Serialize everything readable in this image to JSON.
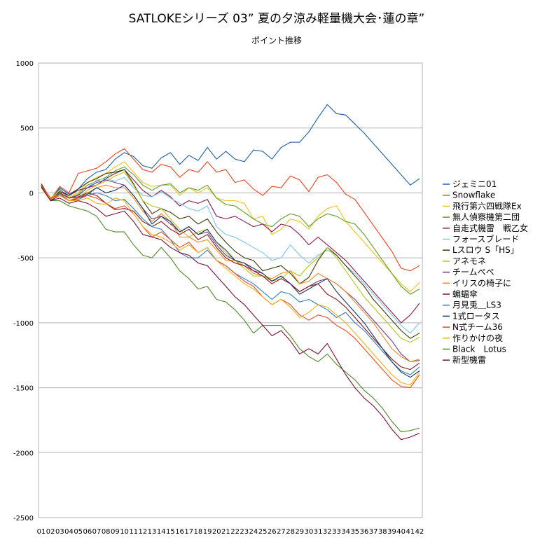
{
  "chart_data": {
    "type": "line",
    "title": "SATLOKEシリーズ 03” 夏の夕涼み軽量機大会･蓮の章”",
    "subtitle": "ポイント推移",
    "ylim": [
      -2500,
      1000
    ],
    "yticks": [
      1000,
      500,
      0,
      -500,
      -1000,
      -1500,
      -2000,
      -2500
    ],
    "xticks": [
      "01",
      "02",
      "03",
      "04",
      "05",
      "06",
      "07",
      "08",
      "09",
      "10",
      "11",
      "12",
      "13",
      "14",
      "15",
      "16",
      "17",
      "18",
      "19",
      "20",
      "21",
      "22",
      "23",
      "24",
      "25",
      "26",
      "27",
      "28",
      "29",
      "30",
      "31",
      "32",
      "33",
      "34",
      "35",
      "36",
      "37",
      "38",
      "39",
      "40",
      "41",
      "42"
    ],
    "grid": true,
    "legend": "right",
    "series": [
      {
        "name": "ジェミニ01",
        "color": "#1f5fa8",
        "values": [
          60,
          -60,
          40,
          -10,
          30,
          110,
          160,
          180,
          260,
          310,
          280,
          210,
          190,
          270,
          310,
          220,
          290,
          250,
          350,
          260,
          320,
          260,
          240,
          330,
          320,
          260,
          350,
          390,
          390,
          470,
          580,
          680,
          610,
          600,
          530,
          460,
          380,
          300,
          220,
          140,
          60,
          110
        ]
      },
      {
        "name": "Snowflake",
        "color": "#e8441f",
        "values": [
          70,
          -50,
          50,
          0,
          150,
          170,
          190,
          240,
          300,
          340,
          260,
          180,
          160,
          220,
          200,
          120,
          180,
          160,
          240,
          160,
          180,
          80,
          100,
          30,
          -20,
          50,
          40,
          130,
          100,
          10,
          120,
          140,
          80,
          -10,
          -50,
          -150,
          -250,
          -350,
          -450,
          -580,
          -600,
          -560
        ]
      },
      {
        "name": "飛行第六四戦隊Ex",
        "color": "#f5c11a",
        "values": [
          60,
          -40,
          20,
          -30,
          0,
          80,
          120,
          150,
          200,
          240,
          160,
          80,
          50,
          60,
          60,
          -20,
          40,
          0,
          40,
          -40,
          -60,
          -60,
          -80,
          -200,
          -180,
          -320,
          -280,
          -200,
          -220,
          -280,
          -180,
          -120,
          -100,
          -220,
          -300,
          -380,
          -460,
          -540,
          -620,
          -700,
          -760,
          -690
        ]
      },
      {
        "name": "無人偵察機第二団",
        "color": "#5a9e2e",
        "values": [
          50,
          -50,
          30,
          -40,
          -10,
          60,
          90,
          120,
          170,
          200,
          140,
          60,
          20,
          60,
          70,
          0,
          40,
          20,
          60,
          -40,
          -90,
          -100,
          -150,
          -200,
          -240,
          -260,
          -200,
          -160,
          -180,
          -260,
          -200,
          -160,
          -180,
          -220,
          -240,
          -320,
          -420,
          -520,
          -620,
          -720,
          -780,
          -740
        ]
      },
      {
        "name": "自走式機雷　戦乙女",
        "color": "#8a1a4a",
        "values": [
          50,
          -60,
          20,
          -20,
          20,
          40,
          60,
          110,
          150,
          180,
          100,
          20,
          -30,
          20,
          -30,
          -100,
          -60,
          -80,
          -50,
          -180,
          -200,
          -180,
          -220,
          -260,
          -240,
          -300,
          -240,
          -260,
          -320,
          -400,
          -340,
          -400,
          -460,
          -520,
          -600,
          -680,
          -760,
          -840,
          -920,
          -1000,
          -940,
          -850
        ]
      },
      {
        "name": "フォースブレード",
        "color": "#7ec5ea",
        "values": [
          60,
          -50,
          20,
          -40,
          -20,
          40,
          100,
          110,
          90,
          120,
          40,
          -20,
          -30,
          10,
          -40,
          -80,
          -120,
          -140,
          -100,
          -260,
          -320,
          -340,
          -380,
          -420,
          -460,
          -520,
          -500,
          -400,
          -480,
          -540,
          -480,
          -440,
          -480,
          -560,
          -620,
          -700,
          -780,
          -860,
          -940,
          -1020,
          -1080,
          -1000
        ]
      },
      {
        "name": "Lスロウ S「HS」",
        "color": "#3b3a0a",
        "values": [
          70,
          -50,
          10,
          -20,
          30,
          80,
          110,
          150,
          160,
          180,
          70,
          -60,
          -160,
          -120,
          -150,
          -200,
          -180,
          -240,
          -200,
          -300,
          -380,
          -450,
          -500,
          -520,
          -600,
          -580,
          -560,
          -620,
          -700,
          -650,
          -520,
          -420,
          -480,
          -560,
          -640,
          -720,
          -820,
          -900,
          -980,
          -1060,
          -1120,
          -1080
        ]
      },
      {
        "name": "アネモネ",
        "color": "#b6c51e",
        "values": [
          50,
          -40,
          0,
          -60,
          -40,
          20,
          60,
          90,
          130,
          160,
          60,
          -60,
          -100,
          -120,
          -200,
          -280,
          -340,
          -300,
          -280,
          -380,
          -460,
          -520,
          -580,
          -640,
          -640,
          -680,
          -660,
          -600,
          -640,
          -560,
          -500,
          -420,
          -500,
          -600,
          -700,
          -800,
          -880,
          -960,
          -1040,
          -1120,
          -1150,
          -1110
        ]
      },
      {
        "name": "チームぺぺ",
        "color": "#6b3b8a",
        "values": [
          60,
          -60,
          0,
          -40,
          -20,
          40,
          80,
          100,
          80,
          60,
          -20,
          -120,
          -200,
          -180,
          -240,
          -300,
          -260,
          -320,
          -300,
          -400,
          -480,
          -520,
          -540,
          -600,
          -620,
          -680,
          -640,
          -700,
          -760,
          -720,
          -680,
          -660,
          -700,
          -760,
          -820,
          -900,
          -980,
          -1060,
          -1140,
          -1240,
          -1300,
          -1290
        ]
      },
      {
        "name": "イリスの椅子に",
        "color": "#f08a24",
        "values": [
          50,
          -40,
          0,
          -60,
          -30,
          0,
          40,
          60,
          40,
          40,
          -40,
          -140,
          -220,
          -160,
          -220,
          -340,
          -340,
          -380,
          -360,
          -440,
          -520,
          -520,
          -560,
          -620,
          -640,
          -660,
          -620,
          -600,
          -700,
          -680,
          -620,
          -660,
          -700,
          -760,
          -840,
          -920,
          -1000,
          -1100,
          -1200,
          -1260,
          -1300,
          -1280
        ]
      },
      {
        "name": "蝙蝠傘",
        "color": "#8b1414",
        "values": [
          60,
          -60,
          0,
          -40,
          -30,
          0,
          -20,
          -80,
          -130,
          -120,
          -140,
          -220,
          -260,
          -220,
          -280,
          -320,
          -280,
          -360,
          -320,
          -420,
          -500,
          -540,
          -560,
          -600,
          -640,
          -700,
          -660,
          -700,
          -760,
          -720,
          -700,
          -780,
          -820,
          -880,
          -960,
          -1040,
          -1120,
          -1200,
          -1280,
          -1340,
          -1360,
          -1310
        ]
      },
      {
        "name": "月見兎＿LS3",
        "color": "#2e7fc2",
        "values": [
          60,
          -50,
          -10,
          -60,
          -50,
          -20,
          0,
          -20,
          -60,
          -50,
          -120,
          -200,
          -260,
          -280,
          -360,
          -460,
          -500,
          -500,
          -440,
          -520,
          -560,
          -620,
          -660,
          -700,
          -760,
          -820,
          -760,
          -780,
          -840,
          -820,
          -860,
          -900,
          -960,
          -920,
          -1000,
          -1060,
          -1140,
          -1220,
          -1300,
          -1370,
          -1400,
          -1340
        ]
      },
      {
        "name": "1式ロータス",
        "color": "#17375e",
        "values": [
          50,
          -60,
          -20,
          -60,
          -40,
          -10,
          40,
          0,
          20,
          60,
          -20,
          -120,
          -240,
          -180,
          -220,
          -300,
          -260,
          -320,
          -280,
          -380,
          -440,
          -520,
          -540,
          -580,
          -620,
          -680,
          -640,
          -700,
          -780,
          -740,
          -700,
          -660,
          -760,
          -840,
          -920,
          -1000,
          -1100,
          -1200,
          -1300,
          -1380,
          -1420,
          -1370
        ]
      },
      {
        "name": "N式チーム36",
        "color": "#e84a2a",
        "values": [
          60,
          -40,
          -20,
          -60,
          -40,
          -20,
          -40,
          -80,
          -120,
          -100,
          -160,
          -260,
          -340,
          -300,
          -360,
          -420,
          -380,
          -460,
          -420,
          -520,
          -560,
          -620,
          -680,
          -720,
          -800,
          -860,
          -820,
          -860,
          -940,
          -980,
          -940,
          -960,
          -1020,
          -1060,
          -1120,
          -1200,
          -1280,
          -1360,
          -1440,
          -1490,
          -1500,
          -1400
        ]
      },
      {
        "name": "作りかけの夜",
        "color": "#f5b01a",
        "values": [
          50,
          -50,
          -20,
          -60,
          -60,
          -40,
          -80,
          -90,
          -40,
          -60,
          -160,
          -260,
          -320,
          -340,
          -380,
          -440,
          -400,
          -460,
          -420,
          -520,
          -580,
          -640,
          -700,
          -740,
          -800,
          -860,
          -820,
          -880,
          -960,
          -920,
          -860,
          -880,
          -940,
          -1000,
          -1080,
          -1160,
          -1240,
          -1320,
          -1400,
          -1460,
          -1480,
          -1380
        ]
      },
      {
        "name": "Black　Lotus",
        "color": "#4f8a2a",
        "values": [
          40,
          -60,
          -60,
          -100,
          -120,
          -140,
          -180,
          -280,
          -300,
          -300,
          -400,
          -480,
          -500,
          -420,
          -500,
          -600,
          -660,
          -740,
          -720,
          -820,
          -840,
          -900,
          -980,
          -1080,
          -1020,
          -1020,
          -1020,
          -1100,
          -1200,
          -1260,
          -1300,
          -1240,
          -1320,
          -1380,
          -1440,
          -1520,
          -1580,
          -1660,
          -1760,
          -1840,
          -1830,
          -1810
        ]
      },
      {
        "name": "新型機雷",
        "color": "#7a1230",
        "values": [
          50,
          -60,
          -40,
          -80,
          -60,
          -80,
          -120,
          -180,
          -160,
          -140,
          -220,
          -320,
          -340,
          -360,
          -420,
          -460,
          -480,
          -540,
          -560,
          -640,
          -720,
          -800,
          -860,
          -940,
          -1020,
          -1100,
          -1060,
          -1140,
          -1240,
          -1200,
          -1240,
          -1160,
          -1280,
          -1400,
          -1500,
          -1580,
          -1640,
          -1720,
          -1820,
          -1900,
          -1880,
          -1850
        ]
      }
    ]
  }
}
